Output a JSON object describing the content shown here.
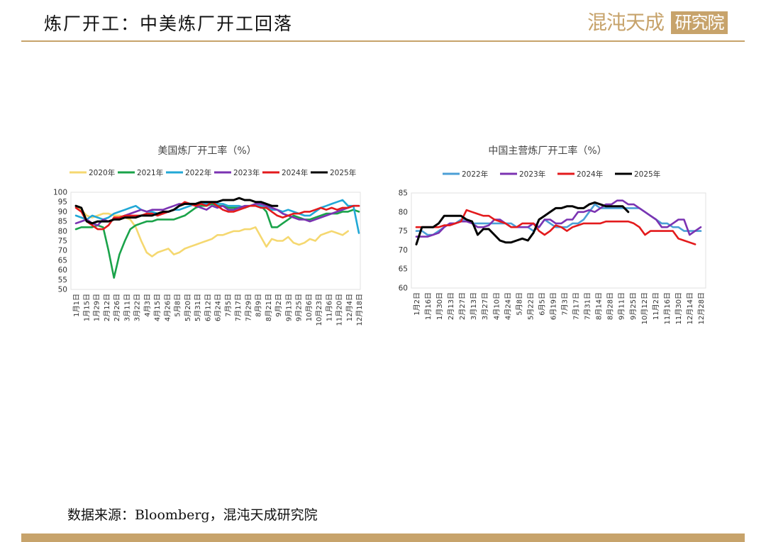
{
  "header": {
    "title": "炼厂开工：中美炼厂开工回落"
  },
  "logo": {
    "text_left": "混沌天成",
    "text_box": "研究院",
    "color": "#c7a36b"
  },
  "footer": {
    "source": "数据来源：Bloomberg，混沌天成研究院"
  },
  "chart_data": [
    {
      "type": "line",
      "title": "美国炼厂开工率（%）",
      "xlabel": "",
      "ylabel": "",
      "ylim": [
        50,
        100
      ],
      "yticks": [
        50,
        55,
        60,
        65,
        70,
        75,
        80,
        85,
        90,
        95,
        100
      ],
      "x_tick_labels": [
        "1月1日",
        "1月15日",
        "1月29日",
        "2月12日",
        "2月26日",
        "3月11日",
        "3月22日",
        "4月3日",
        "4月15日",
        "4月26日",
        "5月8日",
        "5月20日",
        "5月31日",
        "6月12日",
        "6月24日",
        "7月5日",
        "7月17日",
        "7月29日",
        "8月9日",
        "8月21日",
        "9月2日",
        "9月13日",
        "9月25日",
        "10月6日",
        "10月23日",
        "11月6日",
        "11月20日",
        "12月4日",
        "12月18日"
      ],
      "x_count": 53,
      "legend_position": "top",
      "grid": false,
      "series": [
        {
          "name": "2020年",
          "color": "#f5d870",
          "values": [
            93,
            91,
            88,
            87,
            88,
            89,
            89,
            88,
            88,
            87,
            86,
            82,
            75,
            69,
            67,
            69,
            70,
            71,
            68,
            69,
            71,
            72,
            73,
            74,
            75,
            76,
            78,
            78,
            79,
            80,
            80,
            81,
            81,
            82,
            77,
            72,
            76,
            75,
            75,
            77,
            74,
            73,
            74,
            76,
            75,
            78,
            79,
            80,
            79,
            78,
            80,
            null,
            null
          ]
        },
        {
          "name": "2021年",
          "color": "#1aa34a",
          "values": [
            81,
            82,
            82,
            82,
            83,
            82,
            70,
            56,
            68,
            75,
            81,
            83,
            84,
            85,
            85,
            86,
            86,
            86,
            86,
            87,
            88,
            90,
            92,
            93,
            93,
            94,
            93,
            93,
            92,
            92,
            92,
            92,
            93,
            93,
            93,
            90,
            82,
            82,
            84,
            86,
            88,
            87,
            86,
            86,
            87,
            88,
            89,
            89,
            89,
            90,
            90,
            91,
            90
          ]
        },
        {
          "name": "2022年",
          "color": "#21a8d6",
          "values": [
            88,
            87,
            86,
            88,
            87,
            86,
            87,
            89,
            90,
            91,
            92,
            93,
            91,
            90,
            90,
            89,
            89,
            90,
            91,
            91,
            92,
            93,
            94,
            94,
            94,
            95,
            94,
            94,
            93,
            93,
            93,
            92,
            93,
            93,
            93,
            92,
            91,
            91,
            90,
            91,
            90,
            89,
            88,
            88,
            90,
            92,
            93,
            94,
            95,
            96,
            93,
            93,
            79
          ]
        },
        {
          "name": "2023年",
          "color": "#7b33b2",
          "values": [
            84,
            85,
            86,
            84,
            83,
            86,
            85,
            86,
            87,
            88,
            89,
            90,
            91,
            90,
            91,
            91,
            91,
            92,
            93,
            94,
            94,
            94,
            93,
            92,
            91,
            93,
            92,
            93,
            91,
            91,
            92,
            93,
            93,
            94,
            94,
            93,
            92,
            91,
            89,
            88,
            87,
            86,
            86,
            85,
            86,
            87,
            88,
            89,
            90,
            91,
            92,
            93,
            93
          ]
        },
        {
          "name": "2024年",
          "color": "#e31a1c",
          "values": [
            92,
            90,
            85,
            83,
            81,
            81,
            83,
            87,
            87,
            88,
            88,
            88,
            88,
            89,
            89,
            88,
            89,
            90,
            91,
            93,
            95,
            94,
            93,
            94,
            93,
            95,
            93,
            91,
            90,
            90,
            91,
            92,
            93,
            93,
            92,
            92,
            90,
            88,
            87,
            88,
            89,
            89,
            90,
            90,
            91,
            92,
            91,
            92,
            91,
            92,
            92,
            93,
            93
          ]
        },
        {
          "name": "2025年",
          "color": "#000000",
          "values": [
            93,
            92,
            85,
            84,
            85,
            85,
            85,
            86,
            86,
            87,
            87,
            87,
            88,
            88,
            88,
            89,
            90,
            90,
            91,
            93,
            94,
            94,
            94,
            95,
            95,
            95,
            95,
            96,
            96,
            96,
            97,
            96,
            96,
            95,
            95,
            94,
            93,
            93,
            null,
            null,
            null,
            null,
            null,
            null,
            null,
            null,
            null,
            null,
            null,
            null,
            null,
            null,
            null
          ]
        }
      ]
    },
    {
      "type": "line",
      "title": "中国主营炼厂开工率（%）",
      "xlabel": "",
      "ylabel": "",
      "ylim": [
        60,
        85
      ],
      "yticks": [
        60,
        65,
        70,
        75,
        80,
        85
      ],
      "x_tick_labels": [
        "1月2日",
        "1月16日",
        "1月30日",
        "2月13日",
        "2月27日",
        "3月13日",
        "3月27日",
        "4月10日",
        "4月24日",
        "5月8日",
        "5月22日",
        "6月5日",
        "6月19日",
        "7月3日",
        "7月17日",
        "7月31日",
        "8月14日",
        "8月28日",
        "9月11日",
        "9月25日",
        "10月12日",
        "11月2日",
        "11月16日",
        "11月30日",
        "12月14日",
        "12月28日"
      ],
      "x_count": 52,
      "legend_position": "top",
      "grid": false,
      "series": [
        {
          "name": "2022年",
          "color": "#4b9fd6",
          "values": [
            75,
            75,
            74,
            74,
            75,
            76,
            77,
            77,
            78,
            78,
            77,
            77,
            77,
            77,
            77,
            77,
            77,
            77,
            76,
            76,
            76,
            75,
            76,
            78,
            77,
            76,
            76,
            76,
            77,
            77,
            78,
            80,
            82,
            81,
            81,
            81,
            81,
            81,
            81,
            81,
            81,
            80,
            79,
            78,
            77,
            77,
            76,
            76,
            75,
            75,
            75,
            75
          ]
        },
        {
          "name": "2023年",
          "color": "#7b33b2",
          "values": [
            73.5,
            73.5,
            73.5,
            74,
            74.5,
            76,
            77,
            77,
            77.5,
            77.5,
            77,
            76,
            76,
            76.5,
            78,
            78,
            77,
            76,
            76,
            76,
            76,
            77,
            76,
            78,
            78,
            77,
            77,
            78,
            78,
            80,
            80,
            80.5,
            80,
            81,
            82,
            82,
            83,
            83,
            82,
            82,
            81,
            80,
            79,
            78,
            76,
            76,
            77,
            78,
            78,
            74,
            75,
            76
          ]
        },
        {
          "name": "2024年",
          "color": "#e31a1c",
          "values": [
            76,
            76,
            76,
            76,
            76,
            76.5,
            76.5,
            77,
            77.5,
            80.5,
            80,
            79.5,
            79,
            79,
            78,
            77.5,
            77,
            76,
            76,
            77,
            77,
            77,
            75,
            74,
            75,
            76.5,
            76,
            75,
            76,
            76.5,
            77,
            77,
            77,
            77,
            77.5,
            77.5,
            77.5,
            77.5,
            77.5,
            77,
            76,
            74,
            75,
            75,
            75,
            75,
            75,
            73,
            72.5,
            72,
            71.5,
            null
          ]
        },
        {
          "name": "2025年",
          "color": "#000000",
          "values": [
            71.5,
            76,
            76,
            76,
            77,
            79,
            79,
            79,
            79,
            78,
            77.5,
            74,
            75.5,
            75.5,
            74,
            72.5,
            72,
            72,
            72.5,
            73,
            72.5,
            74.5,
            78,
            79,
            80,
            81,
            81,
            81.5,
            81.5,
            81,
            81,
            82,
            82.5,
            82,
            81.5,
            81.5,
            81.5,
            81.5,
            80,
            null,
            null,
            null,
            null,
            null,
            null,
            null,
            null,
            null,
            null,
            null,
            null,
            null
          ]
        }
      ]
    }
  ]
}
